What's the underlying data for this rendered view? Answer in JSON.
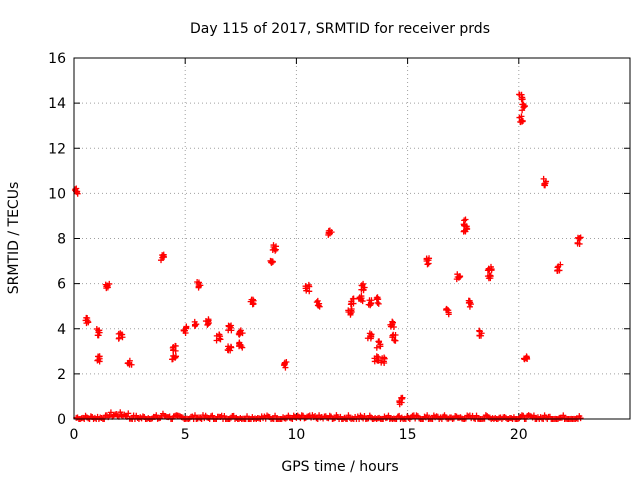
{
  "chart_data": {
    "type": "scatter",
    "title": "Day 115 of 2017, SRMTID for receiver prds",
    "xlabel": "GPS time / hours",
    "ylabel": "SRMTID / TECUs",
    "xlim": [
      0,
      25
    ],
    "ylim": [
      0,
      16
    ],
    "xticks": [
      0,
      5,
      10,
      15,
      20
    ],
    "yticks": [
      0,
      2,
      4,
      6,
      8,
      10,
      12,
      14,
      16
    ],
    "grid": true,
    "marker": "+",
    "series": [
      {
        "name": "SRMTID",
        "color": "#ff0000",
        "baseline": {
          "x_start": 0.1,
          "x_end": 22.8,
          "y_min": 0.0,
          "y_max": 0.25
        },
        "clusters": [
          {
            "x": 0.1,
            "y": 10.1
          },
          {
            "x": 0.6,
            "y": 4.4
          },
          {
            "x": 1.1,
            "y": 3.85
          },
          {
            "x": 1.1,
            "y": 2.65
          },
          {
            "x": 1.5,
            "y": 5.95
          },
          {
            "x": 2.1,
            "y": 3.7
          },
          {
            "x": 2.5,
            "y": 2.55
          },
          {
            "x": 4.0,
            "y": 7.15
          },
          {
            "x": 4.5,
            "y": 3.1
          },
          {
            "x": 4.5,
            "y": 2.7
          },
          {
            "x": 5.0,
            "y": 3.95
          },
          {
            "x": 5.5,
            "y": 4.25
          },
          {
            "x": 5.6,
            "y": 5.95
          },
          {
            "x": 6.0,
            "y": 4.3
          },
          {
            "x": 6.5,
            "y": 3.6
          },
          {
            "x": 7.0,
            "y": 4.05
          },
          {
            "x": 7.0,
            "y": 3.15
          },
          {
            "x": 7.5,
            "y": 3.85
          },
          {
            "x": 7.5,
            "y": 3.25
          },
          {
            "x": 8.0,
            "y": 5.2
          },
          {
            "x": 9.0,
            "y": 7.6
          },
          {
            "x": 8.9,
            "y": 6.9
          },
          {
            "x": 9.5,
            "y": 2.4
          },
          {
            "x": 10.5,
            "y": 5.8
          },
          {
            "x": 11.0,
            "y": 5.1
          },
          {
            "x": 11.5,
            "y": 8.3
          },
          {
            "x": 12.4,
            "y": 4.75
          },
          {
            "x": 12.5,
            "y": 5.2
          },
          {
            "x": 12.9,
            "y": 5.35
          },
          {
            "x": 13.0,
            "y": 5.85
          },
          {
            "x": 13.3,
            "y": 5.15
          },
          {
            "x": 13.3,
            "y": 3.65
          },
          {
            "x": 13.6,
            "y": 2.7
          },
          {
            "x": 13.7,
            "y": 5.25
          },
          {
            "x": 13.7,
            "y": 3.3
          },
          {
            "x": 13.9,
            "y": 2.6
          },
          {
            "x": 14.3,
            "y": 4.2
          },
          {
            "x": 14.4,
            "y": 3.6
          },
          {
            "x": 14.7,
            "y": 0.8
          },
          {
            "x": 15.9,
            "y": 7.0
          },
          {
            "x": 16.8,
            "y": 4.75
          },
          {
            "x": 17.3,
            "y": 6.3
          },
          {
            "x": 17.6,
            "y": 8.7
          },
          {
            "x": 17.6,
            "y": 8.4
          },
          {
            "x": 17.8,
            "y": 5.1
          },
          {
            "x": 18.3,
            "y": 3.8
          },
          {
            "x": 18.7,
            "y": 6.6
          },
          {
            "x": 18.7,
            "y": 6.25
          },
          {
            "x": 20.1,
            "y": 14.3
          },
          {
            "x": 20.2,
            "y": 13.8
          },
          {
            "x": 20.1,
            "y": 13.3
          },
          {
            "x": 20.3,
            "y": 2.75
          },
          {
            "x": 21.2,
            "y": 10.5
          },
          {
            "x": 21.8,
            "y": 6.7
          },
          {
            "x": 22.7,
            "y": 7.9
          }
        ]
      }
    ]
  }
}
